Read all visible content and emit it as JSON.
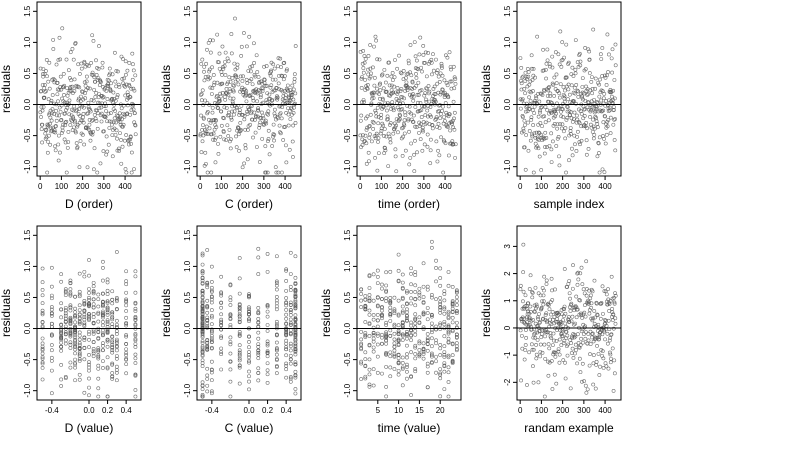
{
  "colors": {
    "background": "#ffffff",
    "frame": "#000000",
    "points": "#555555",
    "zero_line": "#000000"
  },
  "chart_data": [
    {
      "type": "scatter",
      "title": "",
      "xlabel": "D (order)",
      "ylabel": "residuals",
      "xlim": [
        -15,
        475
      ],
      "ylim": [
        -1.15,
        1.65
      ],
      "xticks": [
        0,
        100,
        200,
        300,
        400
      ],
      "xtick_labels": [
        "0",
        "100",
        "200",
        "300",
        "400"
      ],
      "yticks": [
        -1.0,
        -0.5,
        0.0,
        0.5,
        1.0,
        1.5
      ],
      "ytick_labels": [
        "-1.0",
        "-0.5",
        "0.0",
        "0.5",
        "1.0",
        "1.5"
      ],
      "reference_line_y": 0,
      "n_points": 450,
      "x_index_from": 1,
      "y_sd": 0.45,
      "seed": 11
    },
    {
      "type": "scatter",
      "title": "",
      "xlabel": "C (order)",
      "ylabel": "residuals",
      "xlim": [
        -15,
        475
      ],
      "ylim": [
        -1.15,
        1.65
      ],
      "xticks": [
        0,
        100,
        200,
        300,
        400
      ],
      "xtick_labels": [
        "0",
        "100",
        "200",
        "300",
        "400"
      ],
      "yticks": [
        -1.0,
        -0.5,
        0.0,
        0.5,
        1.0,
        1.5
      ],
      "ytick_labels": [
        "-1.0",
        "-0.5",
        "0.0",
        "0.5",
        "1.0",
        "1.5"
      ],
      "reference_line_y": 0,
      "n_points": 450,
      "x_index_from": 1,
      "y_sd": 0.45,
      "seed": 23
    },
    {
      "type": "scatter",
      "title": "",
      "xlabel": "time (order)",
      "ylabel": "residuals",
      "xlim": [
        -15,
        475
      ],
      "ylim": [
        -1.15,
        1.65
      ],
      "xticks": [
        0,
        100,
        200,
        300,
        400
      ],
      "xtick_labels": [
        "0",
        "100",
        "200",
        "300",
        "400"
      ],
      "yticks": [
        -1.0,
        -0.5,
        0.0,
        0.5,
        1.0,
        1.5
      ],
      "ytick_labels": [
        "-1.0",
        "-0.5",
        "0.0",
        "0.5",
        "1.0",
        "1.5"
      ],
      "reference_line_y": 0,
      "n_points": 450,
      "x_index_from": 1,
      "y_sd": 0.45,
      "seed": 37
    },
    {
      "type": "scatter",
      "title": "",
      "xlabel": "sample index",
      "ylabel": "residuals",
      "xlim": [
        -15,
        475
      ],
      "ylim": [
        -1.15,
        1.65
      ],
      "xticks": [
        0,
        100,
        200,
        300,
        400
      ],
      "xtick_labels": [
        "0",
        "100",
        "200",
        "300",
        "400"
      ],
      "yticks": [
        -1.0,
        -0.5,
        0.0,
        0.5,
        1.0,
        1.5
      ],
      "ytick_labels": [
        "-1.0",
        "-0.5",
        "0.0",
        "0.5",
        "1.0",
        "1.5"
      ],
      "reference_line_y": 0,
      "n_points": 450,
      "x_index_from": 1,
      "y_sd": 0.45,
      "seed": 41
    },
    {
      "type": "scatter",
      "title": "",
      "xlabel": "D (value)",
      "ylabel": "residuals",
      "xlim": [
        -0.56,
        0.56
      ],
      "ylim": [
        -1.15,
        1.65
      ],
      "xticks": [
        -0.4,
        0.0,
        0.2,
        0.4
      ],
      "xtick_labels": [
        "-0.4",
        "0.0",
        "0.2",
        "0.4"
      ],
      "yticks": [
        -1.0,
        -0.5,
        0.0,
        0.5,
        1.0,
        1.5
      ],
      "ytick_labels": [
        "-1.0",
        "-0.5",
        "0.0",
        "0.5",
        "1.0",
        "1.5"
      ],
      "reference_line_y": 0,
      "n_points": 450,
      "x_levels": [
        -0.5,
        -0.4,
        -0.3,
        -0.25,
        -0.2,
        -0.15,
        -0.1,
        -0.05,
        0.0,
        0.05,
        0.1,
        0.15,
        0.2,
        0.25,
        0.3,
        0.4,
        0.5
      ],
      "y_sd": 0.45,
      "seed": 53
    },
    {
      "type": "scatter",
      "title": "",
      "xlabel": "C (value)",
      "ylabel": "residuals",
      "xlim": [
        -0.56,
        0.56
      ],
      "ylim": [
        -1.15,
        1.65
      ],
      "xticks": [
        -0.4,
        0.0,
        0.2,
        0.4
      ],
      "xtick_labels": [
        "-0.4",
        "0.0",
        "0.2",
        "0.4"
      ],
      "yticks": [
        -1.0,
        -0.5,
        0.0,
        0.5,
        1.0,
        1.5
      ],
      "ytick_labels": [
        "-1.0",
        "-0.5",
        "0.0",
        "0.5",
        "1.0",
        "1.5"
      ],
      "reference_line_y": 0,
      "n_points": 450,
      "x_levels": [
        -0.5,
        -0.5,
        -0.45,
        -0.4,
        -0.3,
        -0.2,
        -0.1,
        0.0,
        0.1,
        0.2,
        0.3,
        0.4,
        0.45,
        0.5,
        0.5
      ],
      "y_sd": 0.45,
      "seed": 67
    },
    {
      "type": "scatter",
      "title": "",
      "xlabel": "time (value)",
      "ylabel": "residuals",
      "xlim": [
        0,
        25
      ],
      "ylim": [
        -1.15,
        1.65
      ],
      "xticks": [
        5,
        10,
        15,
        20
      ],
      "xtick_labels": [
        "5",
        "10",
        "15",
        "20"
      ],
      "yticks": [
        -1.0,
        -0.5,
        0.0,
        0.5,
        1.0,
        1.5
      ],
      "ytick_labels": [
        "-1.0",
        "-0.5",
        "0.0",
        "0.5",
        "1.0",
        "1.5"
      ],
      "reference_line_y": 0,
      "n_points": 450,
      "x_levels": [
        1,
        2,
        3,
        4,
        5,
        6,
        7,
        8,
        9,
        10,
        11,
        12,
        13,
        14,
        15,
        16,
        17,
        18,
        19,
        20,
        21,
        22,
        23,
        24
      ],
      "y_sd": 0.45,
      "seed": 79
    },
    {
      "type": "scatter",
      "title": "",
      "xlabel": "randam example",
      "ylabel": "residuals",
      "xlim": [
        -15,
        475
      ],
      "ylim": [
        -2.65,
        3.75
      ],
      "xticks": [
        0,
        100,
        200,
        300,
        400
      ],
      "xtick_labels": [
        "0",
        "100",
        "200",
        "300",
        "400"
      ],
      "yticks": [
        -2,
        -1,
        0,
        1,
        2,
        3
      ],
      "ytick_labels": [
        "-2",
        "-1",
        "0",
        "1",
        "2",
        "3"
      ],
      "reference_line_y": 0,
      "n_points": 450,
      "x_index_from": 1,
      "y_sd": 1.0,
      "seed": 97
    }
  ]
}
